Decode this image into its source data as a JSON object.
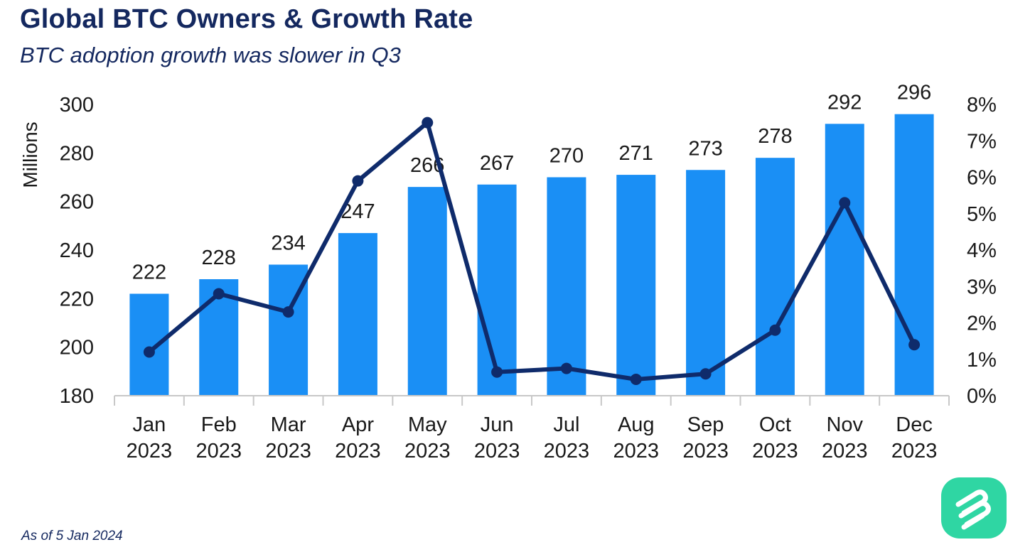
{
  "title": "Global BTC Owners & Growth Rate",
  "subtitle": "BTC adoption growth was slower in Q3",
  "footnote": "As of 5 Jan 2024",
  "colors": {
    "title": "#14285f",
    "bars": "#1a8ff5",
    "line": "#0f2b6b",
    "axis": "#c8c8c8",
    "logo": "#2fd6a3"
  },
  "logo_icon": "stacked-ribbon-logo-icon",
  "chart_data": {
    "type": "bar+line",
    "categories": [
      [
        "Jan",
        "2023"
      ],
      [
        "Feb",
        "2023"
      ],
      [
        "Mar",
        "2023"
      ],
      [
        "Apr",
        "2023"
      ],
      [
        "May",
        "2023"
      ],
      [
        "Jun",
        "2023"
      ],
      [
        "Jul",
        "2023"
      ],
      [
        "Aug",
        "2023"
      ],
      [
        "Sep",
        "2023"
      ],
      [
        "Oct",
        "2023"
      ],
      [
        "Nov",
        "2023"
      ],
      [
        "Dec",
        "2023"
      ]
    ],
    "bars": {
      "values": [
        222,
        228,
        234,
        247,
        266,
        267,
        270,
        271,
        273,
        278,
        292,
        296
      ],
      "data_labels": [
        "222",
        "228",
        "234",
        "247",
        "266",
        "267",
        "270",
        "271",
        "273",
        "278",
        "292",
        "296"
      ]
    },
    "line": {
      "values": [
        1.2,
        2.8,
        2.3,
        5.9,
        7.5,
        0.65,
        0.75,
        0.45,
        0.6,
        1.8,
        5.3,
        1.4
      ]
    },
    "y_left": {
      "label": "Millions",
      "range": [
        180,
        300
      ],
      "ticks": [
        180,
        200,
        220,
        240,
        260,
        280,
        300
      ],
      "tick_labels": [
        "180",
        "200",
        "220",
        "240",
        "260",
        "280",
        "300"
      ]
    },
    "y_right": {
      "range": [
        0,
        8
      ],
      "ticks": [
        0,
        1,
        2,
        3,
        4,
        5,
        6,
        7,
        8
      ],
      "tick_labels": [
        "0%",
        "1%",
        "2%",
        "3%",
        "4%",
        "5%",
        "6%",
        "7%",
        "8%"
      ]
    },
    "grid": false,
    "legend": "none"
  }
}
